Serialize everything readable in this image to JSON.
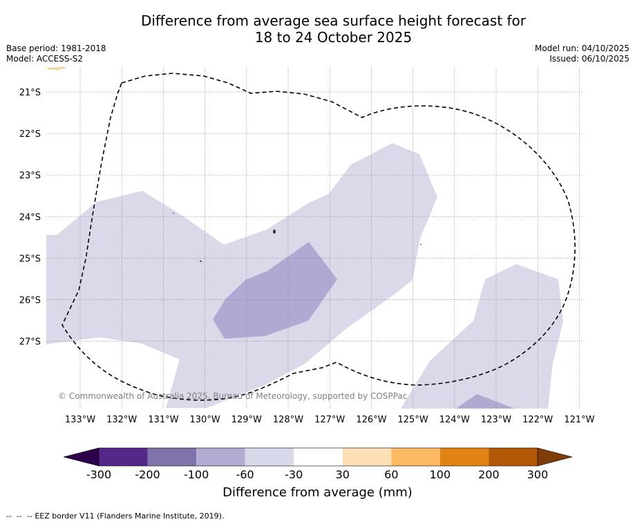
{
  "header": {
    "title_line1": "Difference from average sea surface height forecast for",
    "title_line2": "18 to 24 October 2025",
    "base_period": "Base period: 1981-2018",
    "model": "Model: ACCESS-S2",
    "model_run": "Model run: 04/10/2025",
    "issued": "Issued: 06/10/2025"
  },
  "map": {
    "lat_labels": [
      "21°S",
      "22°S",
      "23°S",
      "24°S",
      "25°S",
      "26°S",
      "27°S"
    ],
    "lon_labels": [
      "133°W",
      "132°W",
      "131°W",
      "130°W",
      "129°W",
      "128°W",
      "127°W",
      "126°W",
      "125°W",
      "124°W",
      "123°W",
      "122°W",
      "121°W"
    ],
    "copyright": "© Commonwealth of Australia 2025, Bureau of Meteorology, supported by COSPPac",
    "colors": {
      "band_m60_m30": "#d9d9ea",
      "band_m100_m60": "#b0a9d2",
      "gridline": "#888888",
      "eez_border": "#000000"
    }
  },
  "colorbar": {
    "title": "Difference from average (mm)",
    "ticks": [
      "-300",
      "-200",
      "-100",
      "-60",
      "-30",
      "30",
      "60",
      "100",
      "200",
      "300"
    ],
    "under_color": "#2d004b",
    "over_color": "#7f3b08",
    "bins": [
      {
        "range": "-300 to -200",
        "color": "#542788"
      },
      {
        "range": "-200 to -100",
        "color": "#8073ac"
      },
      {
        "range": "-100 to -60",
        "color": "#b2abd2"
      },
      {
        "range": "-60 to -30",
        "color": "#d8daeb"
      },
      {
        "range": "-30 to 30",
        "color": "#ffffff"
      },
      {
        "range": "30 to 60",
        "color": "#fee0b6"
      },
      {
        "range": "60 to 100",
        "color": "#fdb863"
      },
      {
        "range": "100 to 200",
        "color": "#e08214"
      },
      {
        "range": "200 to 300",
        "color": "#b35806"
      }
    ]
  },
  "footer": {
    "legend_symbol": "--  --  --",
    "legend_text": "EEZ border V11 (Flanders Marine Institute, 2019)."
  }
}
